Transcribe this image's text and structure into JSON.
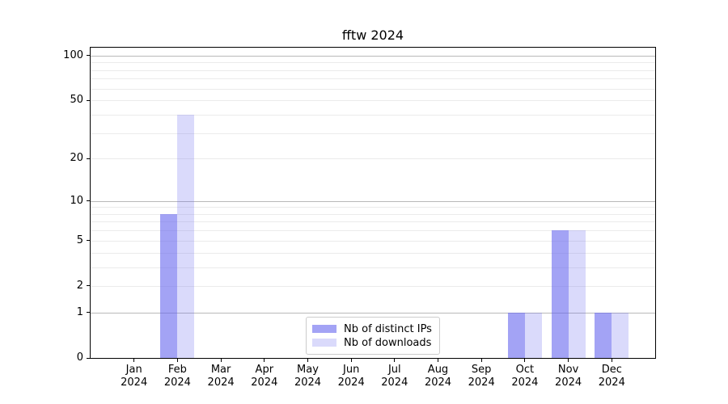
{
  "chart_data": {
    "type": "bar",
    "title": "fftw 2024",
    "categories": [
      "Jan 2024",
      "Feb 2024",
      "Mar 2024",
      "Apr 2024",
      "May 2024",
      "Jun 2024",
      "Jul 2024",
      "Aug 2024",
      "Sep 2024",
      "Oct 2024",
      "Nov 2024",
      "Dec 2024"
    ],
    "series": [
      {
        "name": "Nb of distinct IPs",
        "color": "#a3a3f2",
        "rgba": "rgba(102,102,238,0.6)",
        "values": [
          0,
          8,
          0,
          0,
          0,
          0,
          0,
          0,
          0,
          1,
          6,
          1
        ]
      },
      {
        "name": "Nb of downloads",
        "color": "#dcdcf8",
        "rgba": "rgba(102,102,238,0.24)",
        "values": [
          0,
          40,
          0,
          0,
          0,
          0,
          0,
          0,
          0,
          1,
          6,
          1
        ]
      }
    ],
    "y_scale": "log10(1+value)",
    "ylim": [
      0,
      113
    ],
    "y_tick_labels": [
      0,
      1,
      2,
      5,
      10,
      20,
      50,
      100
    ],
    "y_major_gridlines": [
      1,
      10,
      100
    ],
    "y_minor_gridlines": [
      2,
      3,
      4,
      5,
      6,
      7,
      8,
      9,
      20,
      30,
      40,
      50,
      60,
      70,
      80,
      90
    ],
    "grid": "both",
    "legend_position": "lower center",
    "axis_color": "#000000",
    "major_grid_color": "#b9b9b9",
    "minor_grid_color": "#ebebeb"
  }
}
